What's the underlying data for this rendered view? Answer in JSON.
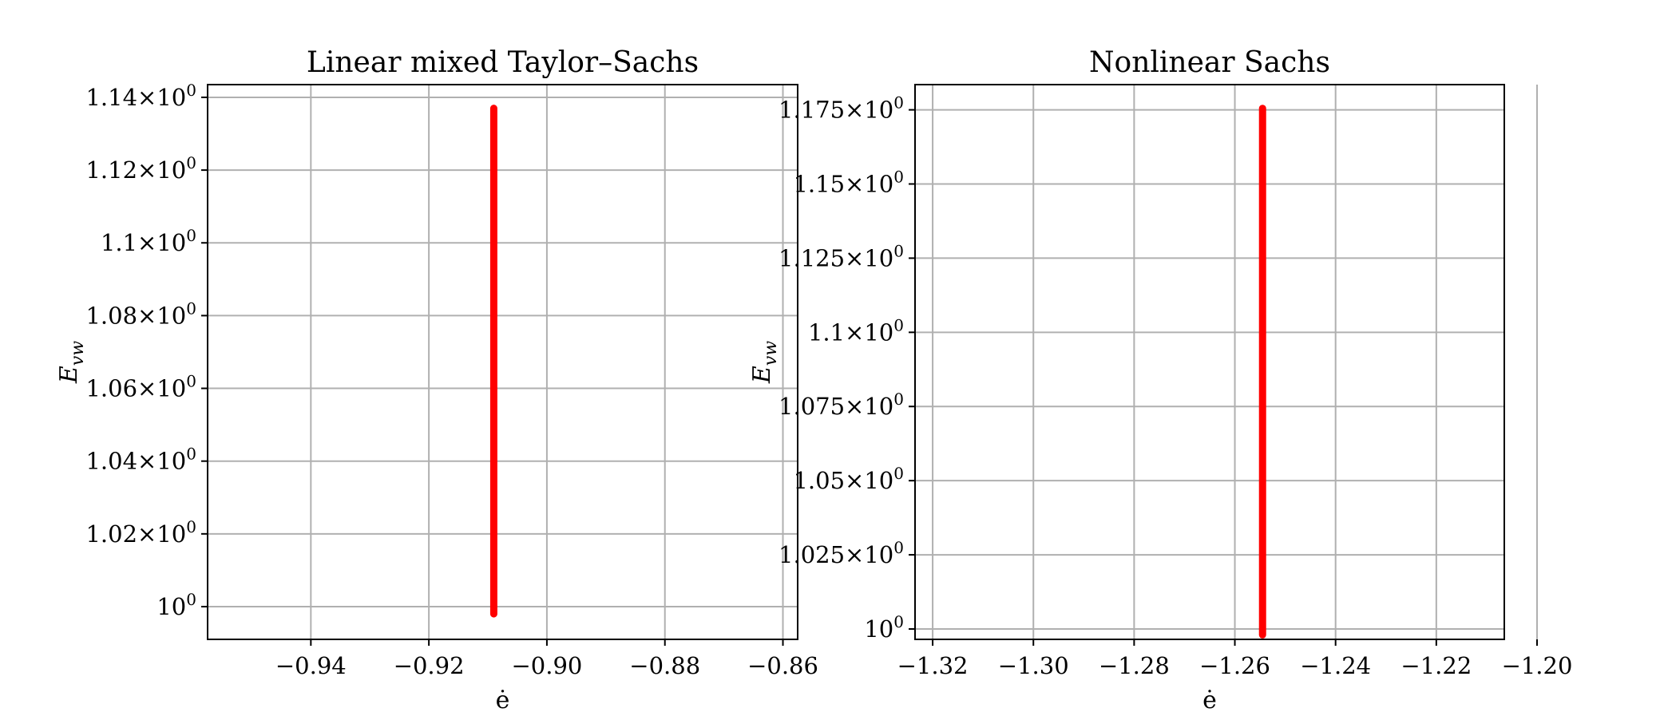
{
  "chart_data": [
    {
      "type": "scatter",
      "title": "Linear mixed Taylor–Sachs",
      "xlabel": "ė",
      "ylabel_main": "E",
      "ylabel_sub": "vw",
      "xlim": [
        -0.9575,
        -0.8575
      ],
      "ylim": [
        0.991,
        1.1435
      ],
      "grid": true,
      "xticks": [
        {
          "value": -0.94,
          "label": "−0.94"
        },
        {
          "value": -0.92,
          "label": "−0.92"
        },
        {
          "value": -0.9,
          "label": "−0.90"
        },
        {
          "value": -0.88,
          "label": "−0.88"
        },
        {
          "value": -0.86,
          "label": "−0.86"
        }
      ],
      "yticks": [
        {
          "value": 1.0,
          "mantissa": "",
          "label": "10"
        },
        {
          "value": 1.02,
          "mantissa": "1.02×",
          "label": "10"
        },
        {
          "value": 1.04,
          "mantissa": "1.04×",
          "label": "10"
        },
        {
          "value": 1.06,
          "mantissa": "1.06×",
          "label": "10"
        },
        {
          "value": 1.08,
          "mantissa": "1.08×",
          "label": "10"
        },
        {
          "value": 1.1,
          "mantissa": "1.1×",
          "label": "10"
        },
        {
          "value": 1.12,
          "mantissa": "1.12×",
          "label": "10"
        },
        {
          "value": 1.14,
          "mantissa": "1.14×",
          "label": "10"
        }
      ],
      "exponent": "0",
      "series": [
        {
          "color": "#ff0000",
          "x": -0.909,
          "y_range": [
            0.998,
            1.137
          ]
        }
      ]
    },
    {
      "type": "scatter",
      "title": "Nonlinear Sachs",
      "xlabel": "ė",
      "ylabel_main": "E",
      "ylabel_sub": "vw",
      "xlim": [
        -1.3235,
        -1.2065
      ],
      "ylim": [
        0.9965,
        1.1835
      ],
      "grid": true,
      "xticks": [
        {
          "value": -1.32,
          "label": "−1.32"
        },
        {
          "value": -1.3,
          "label": "−1.30"
        },
        {
          "value": -1.28,
          "label": "−1.28"
        },
        {
          "value": -1.26,
          "label": "−1.26"
        },
        {
          "value": -1.24,
          "label": "−1.24"
        },
        {
          "value": -1.22,
          "label": "−1.22"
        },
        {
          "value": -1.2,
          "label": "−1.20"
        }
      ],
      "yticks": [
        {
          "value": 1.0,
          "mantissa": "",
          "label": "10"
        },
        {
          "value": 1.025,
          "mantissa": "1.025×",
          "label": "10"
        },
        {
          "value": 1.05,
          "mantissa": "1.05×",
          "label": "10"
        },
        {
          "value": 1.075,
          "mantissa": "1.075×",
          "label": "10"
        },
        {
          "value": 1.1,
          "mantissa": "1.1×",
          "label": "10"
        },
        {
          "value": 1.125,
          "mantissa": "1.125×",
          "label": "10"
        },
        {
          "value": 1.15,
          "mantissa": "1.15×",
          "label": "10"
        },
        {
          "value": 1.175,
          "mantissa": "1.175×",
          "label": "10"
        }
      ],
      "exponent": "0",
      "series": [
        {
          "color": "#ff0000",
          "x": -1.2545,
          "y_range": [
            0.998,
            1.1755
          ]
        }
      ]
    }
  ]
}
